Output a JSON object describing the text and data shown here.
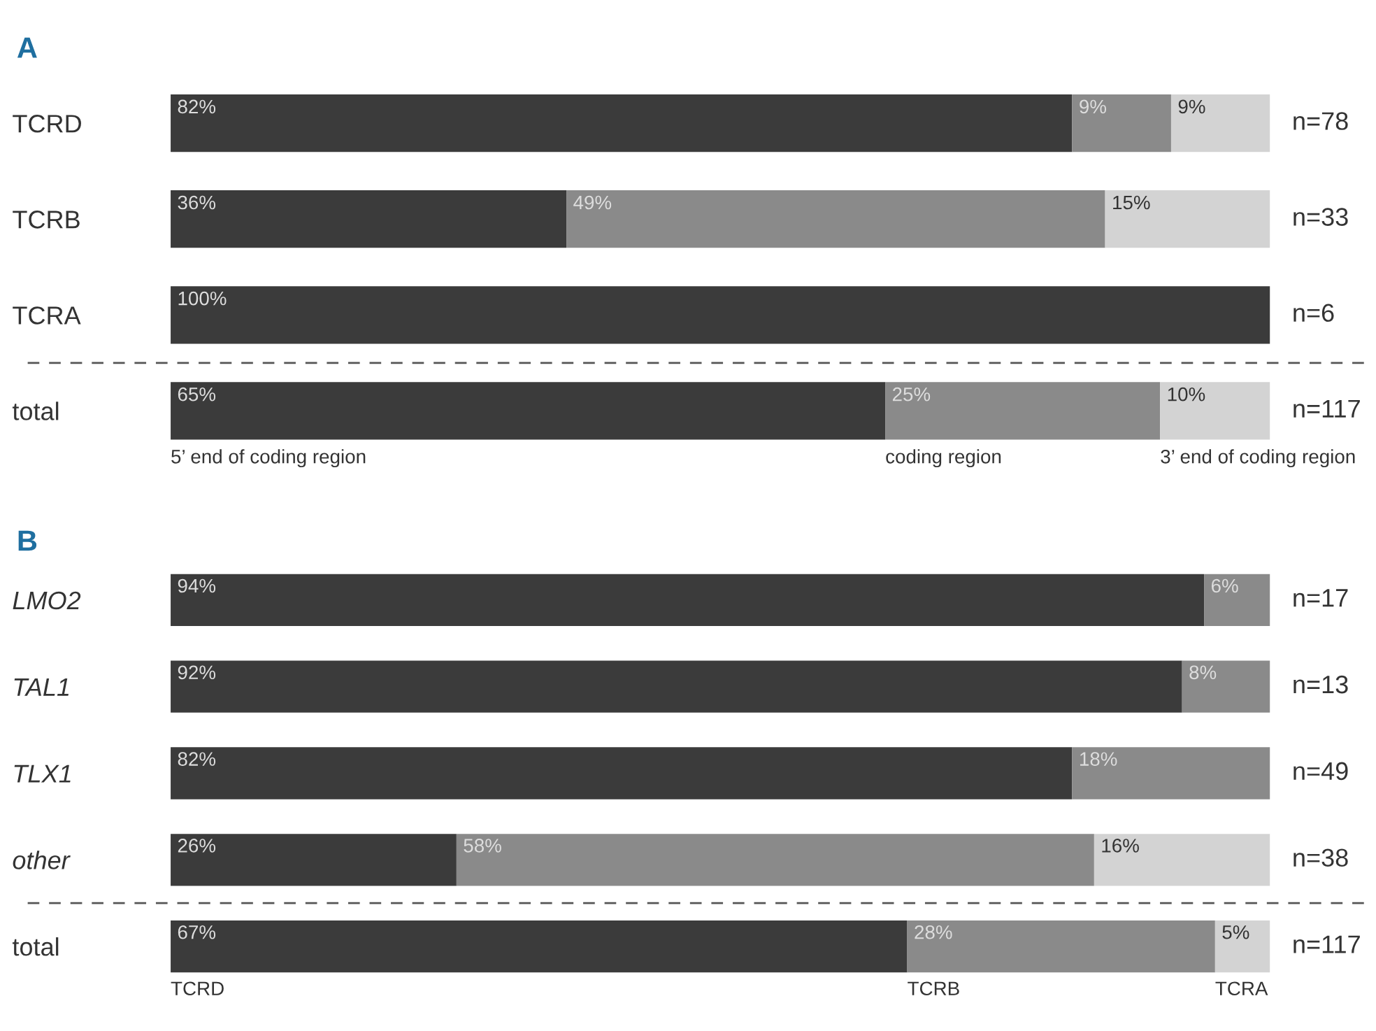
{
  "chart_data": [
    {
      "type": "bar",
      "title": "A",
      "orientation": "horizontal",
      "stacked": true,
      "tick_labels": "y",
      "xlim": [
        0,
        100
      ],
      "categories": [
        "TCRD",
        "TCRB",
        "TCRA",
        "total"
      ],
      "series": [
        {
          "name": "5’ end of coding region",
          "color": "#3b3b3b",
          "values": [
            82,
            36,
            100,
            65
          ],
          "value_labels": [
            "82%",
            "36%",
            "100%",
            "65%"
          ]
        },
        {
          "name": "coding region",
          "color": "#8a8a8a",
          "values": [
            9,
            49,
            null,
            25
          ],
          "value_labels": [
            "9%",
            "49%",
            null,
            "25%"
          ]
        },
        {
          "name": "3’ end of coding region",
          "color": "#d3d3d3",
          "values": [
            9,
            15,
            null,
            10
          ],
          "value_labels": [
            "9%",
            "15%",
            null,
            "10%"
          ]
        }
      ],
      "annotations": [
        "n=78",
        "n=33",
        "n=6",
        "n=117"
      ]
    },
    {
      "type": "bar",
      "title": "B",
      "orientation": "horizontal",
      "stacked": true,
      "tick_labels": "y",
      "xlim": [
        0,
        100
      ],
      "categories": [
        "LMO2",
        "TAL1",
        "TLX1",
        "other",
        "total"
      ],
      "series": [
        {
          "name": "TCRD",
          "color": "#3b3b3b",
          "values": [
            94,
            92,
            82,
            26,
            67
          ],
          "value_labels": [
            "94%",
            "92%",
            "82%",
            "26%",
            "67%"
          ]
        },
        {
          "name": "TCRB",
          "color": "#8a8a8a",
          "values": [
            6,
            8,
            18,
            58,
            28
          ],
          "value_labels": [
            "6%",
            "8%",
            "18%",
            "58%",
            "28%"
          ]
        },
        {
          "name": "TCRA",
          "color": "#d3d3d3",
          "values": [
            null,
            null,
            null,
            16,
            5
          ],
          "value_labels": [
            null,
            null,
            null,
            "16%",
            "5%"
          ]
        }
      ],
      "annotations": [
        "n=17",
        "n=13",
        "n=49",
        "n=38",
        "n=117"
      ]
    }
  ]
}
